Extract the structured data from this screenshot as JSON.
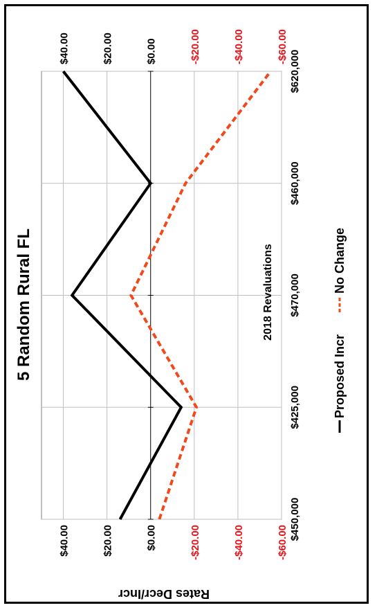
{
  "chart_data": {
    "type": "line",
    "title": "5 Random Rural FL",
    "xlabel": "2018 Revaluations",
    "ylabel": "Rates Decr/Incr",
    "categories": [
      "$450,000",
      "$425,000",
      "$470,000",
      "$460,000",
      "$620,000"
    ],
    "series": [
      {
        "name": "Proposed Incr",
        "values": [
          14,
          -14,
          36,
          0,
          40
        ],
        "color": "#000000"
      },
      {
        "name": "No Change",
        "values": [
          -4,
          -21,
          9,
          -16,
          -55
        ],
        "color": "#f04a1c"
      }
    ],
    "ylim": [
      -60,
      50
    ],
    "y_ticks": [
      {
        "value": 40,
        "label": "$40.00",
        "color": "#000000"
      },
      {
        "value": 20,
        "label": "$20.00",
        "color": "#000000"
      },
      {
        "value": 0,
        "label": "$0.00",
        "color": "#000000"
      },
      {
        "value": -20,
        "label": "-$20.00",
        "color": "#e8141b"
      },
      {
        "value": -40,
        "label": "-$40.00",
        "color": "#e8141b"
      },
      {
        "value": -60,
        "label": "-$60.00",
        "color": "#e8141b"
      }
    ],
    "grid": true,
    "legend_position": "bottom",
    "rotation": "90-cw"
  }
}
